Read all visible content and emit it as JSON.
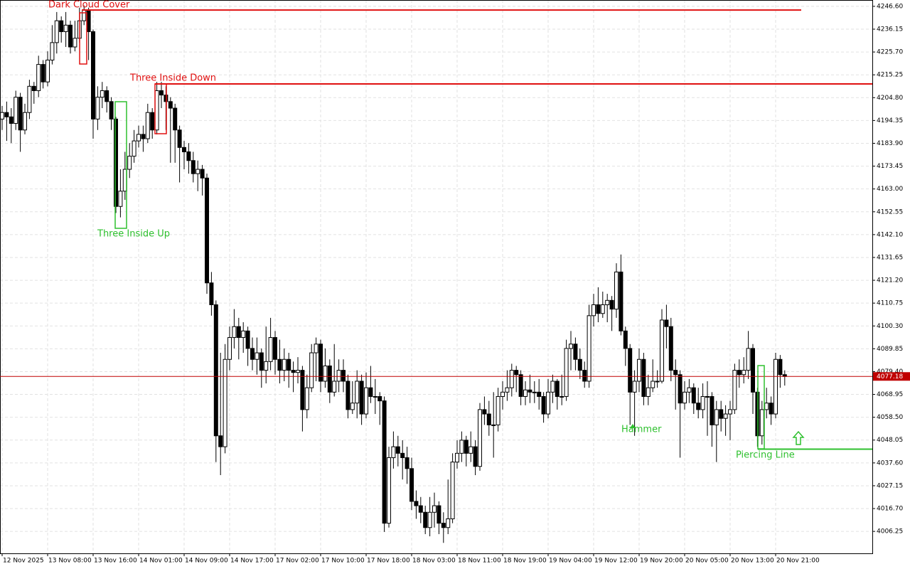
{
  "chart_data": {
    "type": "candlestick",
    "categories": [
      "12 Nov 2025",
      null,
      null,
      null,
      null,
      null,
      null,
      null,
      null,
      null,
      "13 Nov 08:00",
      null,
      null,
      null,
      null,
      null,
      null,
      null,
      null,
      null,
      "13 Nov 16:00",
      null,
      null,
      null,
      null,
      null,
      null,
      null,
      null,
      null,
      "14 Nov 01:00",
      null,
      null,
      null,
      null,
      null,
      null,
      null,
      null,
      null,
      "14 Nov 09:00",
      null,
      null,
      null,
      null,
      null,
      null,
      null,
      null,
      null,
      "14 Nov 17:00",
      null,
      null,
      null,
      null,
      null,
      null,
      null,
      null,
      null,
      "17 Nov 02:00",
      null,
      null,
      null,
      null,
      null,
      null,
      null,
      null,
      null,
      "17 Nov 10:00",
      null,
      null,
      null,
      null,
      null,
      null,
      null,
      null,
      null,
      "17 Nov 18:00",
      null,
      null,
      null,
      null,
      null,
      null,
      null,
      null,
      null,
      "18 Nov 03:00",
      null,
      null,
      null,
      null,
      null,
      null,
      null,
      null,
      null,
      "18 Nov 11:00",
      null,
      null,
      null,
      null,
      null,
      null,
      null,
      null,
      null,
      "18 Nov 19:00",
      null,
      null,
      null,
      null,
      null,
      null,
      null,
      null,
      null,
      "19 Nov 04:00",
      null,
      null,
      null,
      null,
      null,
      null,
      null,
      null,
      null,
      "19 Nov 12:00",
      null,
      null,
      null,
      null,
      null,
      null,
      null,
      null,
      null,
      "19 Nov 20:00",
      null,
      null,
      null,
      null,
      null,
      null,
      null,
      null,
      null,
      "20 Nov 05:00",
      null,
      null,
      null,
      null,
      null,
      null,
      null,
      null,
      null,
      "20 Nov 13:00",
      null,
      null,
      null,
      null,
      null,
      null,
      null,
      null,
      null,
      "20 Nov 21:00",
      null,
      null
    ],
    "open": [
      4195,
      4198,
      4196,
      4193,
      4205,
      4190,
      4198,
      4210,
      4208,
      4220,
      4212,
      4222,
      4230,
      4240,
      4235,
      4238,
      4228,
      4232,
      4240,
      4245,
      4235,
      4195,
      4205,
      4208,
      4203,
      4195,
      4155,
      4162,
      4172,
      4178,
      4185,
      4188,
      4186,
      4198,
      4190,
      4208,
      4206,
      4203,
      4200,
      4190,
      4182,
      4180,
      4176,
      4170,
      4172,
      4168,
      4120,
      4110,
      4050,
      4045,
      4085,
      4095,
      4100,
      4095,
      4098,
      4090,
      4085,
      4088,
      4080,
      4084,
      4095,
      4085,
      4080,
      4085,
      4080,
      4079,
      4080,
      4062,
      4072,
      4088,
      4092,
      4075,
      4082,
      4070,
      4075,
      4080,
      4075,
      4062,
      4065,
      4075,
      4060,
      4072,
      4068,
      4068,
      4066,
      4010,
      4040,
      4045,
      4042,
      4040,
      4035,
      4020,
      4018,
      4015,
      4008,
      4015,
      4018,
      4010,
      4008,
      4012,
      4038,
      4042,
      4048,
      4042,
      4045,
      4036,
      4062,
      4060,
      4055,
      4055,
      4068,
      4070,
      4072,
      4080,
      4078,
      4068,
      4071,
      4070,
      4070,
      4068,
      4060,
      4070,
      4075,
      4068,
      4068,
      4090,
      4092,
      4085,
      4080,
      4075,
      4105,
      4110,
      4106,
      4110,
      4112,
      4108,
      4125,
      4098,
      4090,
      4070,
      4075,
      4085,
      4068,
      4072,
      4075,
      4075,
      4103,
      4100,
      4080,
      4078,
      4065,
      4070,
      4072,
      4065,
      4062,
      4068,
      4068,
      4055,
      4062,
      4058,
      4060,
      4062,
      4080,
      4078,
      4080,
      4090,
      4070,
      4050,
      4062,
      4065,
      4060,
      4085,
      4078
    ],
    "high": [
      4201,
      4203,
      4200,
      4208,
      4207,
      4202,
      4213,
      4212,
      4224,
      4222,
      4226,
      4238,
      4244,
      4242,
      4244,
      4240,
      4240,
      4246,
      4247,
      4246,
      4236,
      4210,
      4212,
      4210,
      4205,
      4196,
      4172,
      4180,
      4184,
      4190,
      4192,
      4192,
      4202,
      4200,
      4212,
      4212,
      4210,
      4205,
      4202,
      4192,
      4185,
      4184,
      4180,
      4176,
      4174,
      4170,
      4125,
      4112,
      4088,
      4092,
      4100,
      4108,
      4104,
      4102,
      4100,
      4095,
      4095,
      4090,
      4100,
      4104,
      4098,
      4094,
      4090,
      4088,
      4084,
      4086,
      4082,
      4078,
      4092,
      4095,
      4094,
      4090,
      4085,
      4092,
      4085,
      4085,
      4078,
      4075,
      4080,
      4078,
      4079,
      4082,
      4076,
      4070,
      4068,
      4045,
      4052,
      4050,
      4048,
      4045,
      4040,
      4025,
      4022,
      4018,
      4022,
      4024,
      4020,
      4015,
      4030,
      4042,
      4048,
      4052,
      4050,
      4052,
      4048,
      4065,
      4068,
      4066,
      4070,
      4072,
      4075,
      4080,
      4083,
      4082,
      4080,
      4075,
      4078,
      4075,
      4076,
      4070,
      4076,
      4078,
      4076,
      4078,
      4094,
      4098,
      4095,
      4090,
      4084,
      4110,
      4115,
      4118,
      4116,
      4115,
      4114,
      4129,
      4133,
      4100,
      4092,
      4080,
      4090,
      4088,
      4078,
      4085,
      4080,
      4108,
      4110,
      4104,
      4085,
      4080,
      4075,
      4076,
      4074,
      4072,
      4074,
      4075,
      4070,
      4066,
      4066,
      4064,
      4066,
      4083,
      4085,
      4086,
      4098,
      4092,
      4072,
      4066,
      4072,
      4068,
      4088,
      4087,
      4080
    ],
    "low": [
      4190,
      4185,
      4184,
      4190,
      4180,
      4188,
      4195,
      4202,
      4205,
      4209,
      4210,
      4220,
      4225,
      4230,
      4228,
      4225,
      4226,
      4230,
      4238,
      4222,
      4186,
      4190,
      4200,
      4198,
      4190,
      4152,
      4150,
      4158,
      4168,
      4175,
      4182,
      4180,
      4184,
      4186,
      4188,
      4200,
      4190,
      4175,
      4175,
      4166,
      4172,
      4170,
      4166,
      4162,
      4160,
      4115,
      4105,
      4038,
      4032,
      4042,
      4080,
      4090,
      4085,
      4088,
      4082,
      4080,
      4078,
      4072,
      4074,
      4080,
      4078,
      4074,
      4075,
      4072,
      4070,
      4074,
      4052,
      4058,
      4070,
      4075,
      4070,
      4072,
      4065,
      4068,
      4070,
      4070,
      4058,
      4060,
      4058,
      4055,
      4058,
      4065,
      4060,
      4055,
      4006,
      4008,
      4035,
      4036,
      4030,
      4028,
      4016,
      4012,
      4010,
      4005,
      4004,
      4008,
      4005,
      4001,
      4005,
      4010,
      4035,
      4038,
      4036,
      4038,
      4032,
      4034,
      4055,
      4050,
      4040,
      4052,
      4062,
      4066,
      4068,
      4070,
      4064,
      4064,
      4065,
      4065,
      4062,
      4056,
      4058,
      4065,
      4062,
      4064,
      4066,
      4080,
      4080,
      4076,
      4072,
      4072,
      4100,
      4102,
      4104,
      4102,
      4098,
      4104,
      4096,
      4082,
      4055,
      4050,
      4070,
      4064,
      4064,
      4070,
      4072,
      4074,
      4090,
      4075,
      4062,
      4040,
      4062,
      4065,
      4060,
      4058,
      4058,
      4050,
      4045,
      4038,
      4052,
      4050,
      4048,
      4060,
      4072,
      4074,
      4076,
      4060,
      4045,
      4046,
      4058,
      4055,
      4058,
      4072,
      4073
    ],
    "close": [
      4198,
      4196,
      4193,
      4205,
      4190,
      4198,
      4210,
      4208,
      4220,
      4212,
      4222,
      4230,
      4240,
      4235,
      4238,
      4228,
      4232,
      4240,
      4245,
      4235,
      4195,
      4205,
      4208,
      4203,
      4195,
      4155,
      4162,
      4172,
      4178,
      4185,
      4188,
      4186,
      4198,
      4190,
      4208,
      4206,
      4203,
      4200,
      4190,
      4182,
      4180,
      4176,
      4170,
      4172,
      4168,
      4120,
      4110,
      4050,
      4045,
      4085,
      4095,
      4100,
      4095,
      4098,
      4090,
      4085,
      4088,
      4080,
      4084,
      4095,
      4085,
      4080,
      4085,
      4080,
      4079,
      4080,
      4062,
      4072,
      4088,
      4092,
      4075,
      4082,
      4070,
      4075,
      4080,
      4075,
      4062,
      4065,
      4075,
      4060,
      4072,
      4068,
      4068,
      4066,
      4010,
      4040,
      4045,
      4042,
      4040,
      4035,
      4020,
      4018,
      4015,
      4008,
      4015,
      4018,
      4010,
      4008,
      4012,
      4038,
      4042,
      4048,
      4042,
      4045,
      4036,
      4062,
      4060,
      4055,
      4055,
      4068,
      4070,
      4072,
      4080,
      4078,
      4068,
      4071,
      4070,
      4070,
      4068,
      4060,
      4070,
      4075,
      4068,
      4068,
      4090,
      4092,
      4085,
      4080,
      4075,
      4105,
      4110,
      4106,
      4110,
      4112,
      4108,
      4125,
      4098,
      4090,
      4070,
      4075,
      4085,
      4068,
      4072,
      4075,
      4075,
      4103,
      4100,
      4080,
      4078,
      4065,
      4070,
      4072,
      4065,
      4062,
      4068,
      4068,
      4055,
      4062,
      4058,
      4060,
      4062,
      4080,
      4078,
      4080,
      4090,
      4070,
      4050,
      4062,
      4065,
      4060,
      4085,
      4078,
      4077.18
    ],
    "ylim": [
      3996.2,
      4249.5
    ],
    "yticks": [
      {
        "value": 4246.6,
        "label": "4246.60"
      },
      4236.15,
      {
        "value": 4225.7,
        "label": "4225.70"
      },
      4215.25,
      {
        "value": 4204.8,
        "label": "4204.80"
      },
      4194.35,
      {
        "value": 4183.9,
        "label": "4183.90"
      },
      4173.45,
      {
        "value": 4163,
        "label": "4163.00"
      },
      4152.55,
      {
        "value": 4142.1,
        "label": "4142.10"
      },
      4131.65,
      {
        "value": 4121.2,
        "label": "4121.20"
      },
      4110.75,
      {
        "value": 4100.3,
        "label": "4100.30"
      },
      4089.85,
      {
        "value": 4079.4,
        "label": "4079.40"
      },
      4068.95,
      {
        "value": 4058.5,
        "label": "4058.50"
      },
      4048.05,
      {
        "value": 4037.6,
        "label": "4037.60"
      },
      4027.15,
      {
        "value": 4016.7,
        "label": "4016.70"
      },
      4006.25
    ],
    "grid": true,
    "up_color": "#ffffff",
    "down_color": "#000000",
    "last_price": 4077.18,
    "last_price_color": "#c00000",
    "annotations": [
      {
        "text": "Dark Cloud Cover",
        "level": 4244.9,
        "color": "#e01010"
      },
      {
        "text": "Three Inside Down",
        "level": 4211.1,
        "color": "#e01010"
      },
      {
        "text": "Three Inside Up",
        "color": "#2ec02e"
      },
      {
        "text": "Hammer",
        "color": "#2ec02e"
      },
      {
        "text": "Piercing Line",
        "level": 4043.9,
        "color": "#2ec02e"
      }
    ]
  }
}
